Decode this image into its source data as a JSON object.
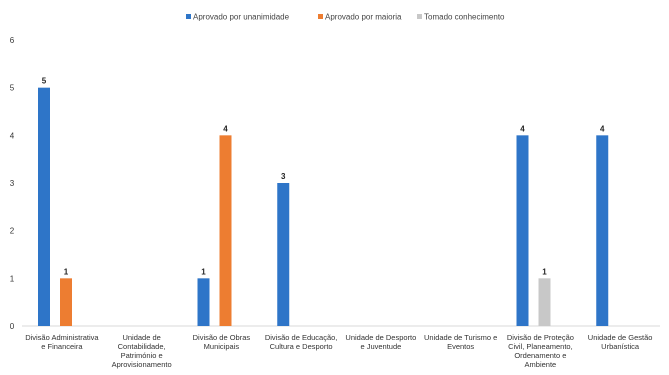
{
  "chart_data": {
    "type": "bar",
    "title": "",
    "xlabel": "",
    "ylabel": "",
    "ylim": [
      0,
      6
    ],
    "yticks": [
      0,
      1,
      2,
      3,
      4,
      5,
      6
    ],
    "grid": false,
    "legend_position": "top-center",
    "categories": [
      "Divisão Administrativa e Financeira",
      "Unidade de Contabilidade, Património e Aprovisionamento",
      "Divisão de Obras Municipais",
      "Divisão de Educação, Cultura e Desporto",
      "Unidade de Desporto e Juventude",
      "Unidade de Turismo e Eventos",
      "Divisão de Proteção Civil, Planeamento, Ordenamento e Ambiente",
      "Unidade de Gestão Urbanística"
    ],
    "category_lines": [
      [
        "Divisão Administrativa",
        "e Financeira"
      ],
      [
        "Unidade de",
        "Contabilidade,",
        "Património e",
        "Aprovisionamento"
      ],
      [
        "Divisão de Obras",
        "Municipais"
      ],
      [
        "Divisão de Educação,",
        "Cultura e Desporto"
      ],
      [
        "Unidade de Desporto",
        "e Juventude"
      ],
      [
        "Unidade de Turismo e",
        "Eventos"
      ],
      [
        "Divisão de Proteção",
        "Civil, Planeamento,",
        "Ordenamento e",
        "Ambiente"
      ],
      [
        "Unidade de Gestão",
        "Urbanística"
      ]
    ],
    "series": [
      {
        "name": "Aprovado por unanimidade",
        "color": "#2e75c8",
        "values": [
          5,
          0,
          1,
          3,
          0,
          0,
          4,
          4
        ]
      },
      {
        "name": "Aprovado por maioria",
        "color": "#ed7d31",
        "values": [
          1,
          0,
          4,
          0,
          0,
          0,
          0,
          0
        ]
      },
      {
        "name": "Tomado conhecimento",
        "color": "#c8c8c8",
        "values": [
          0,
          0,
          0,
          0,
          0,
          0,
          1,
          0
        ]
      }
    ]
  }
}
